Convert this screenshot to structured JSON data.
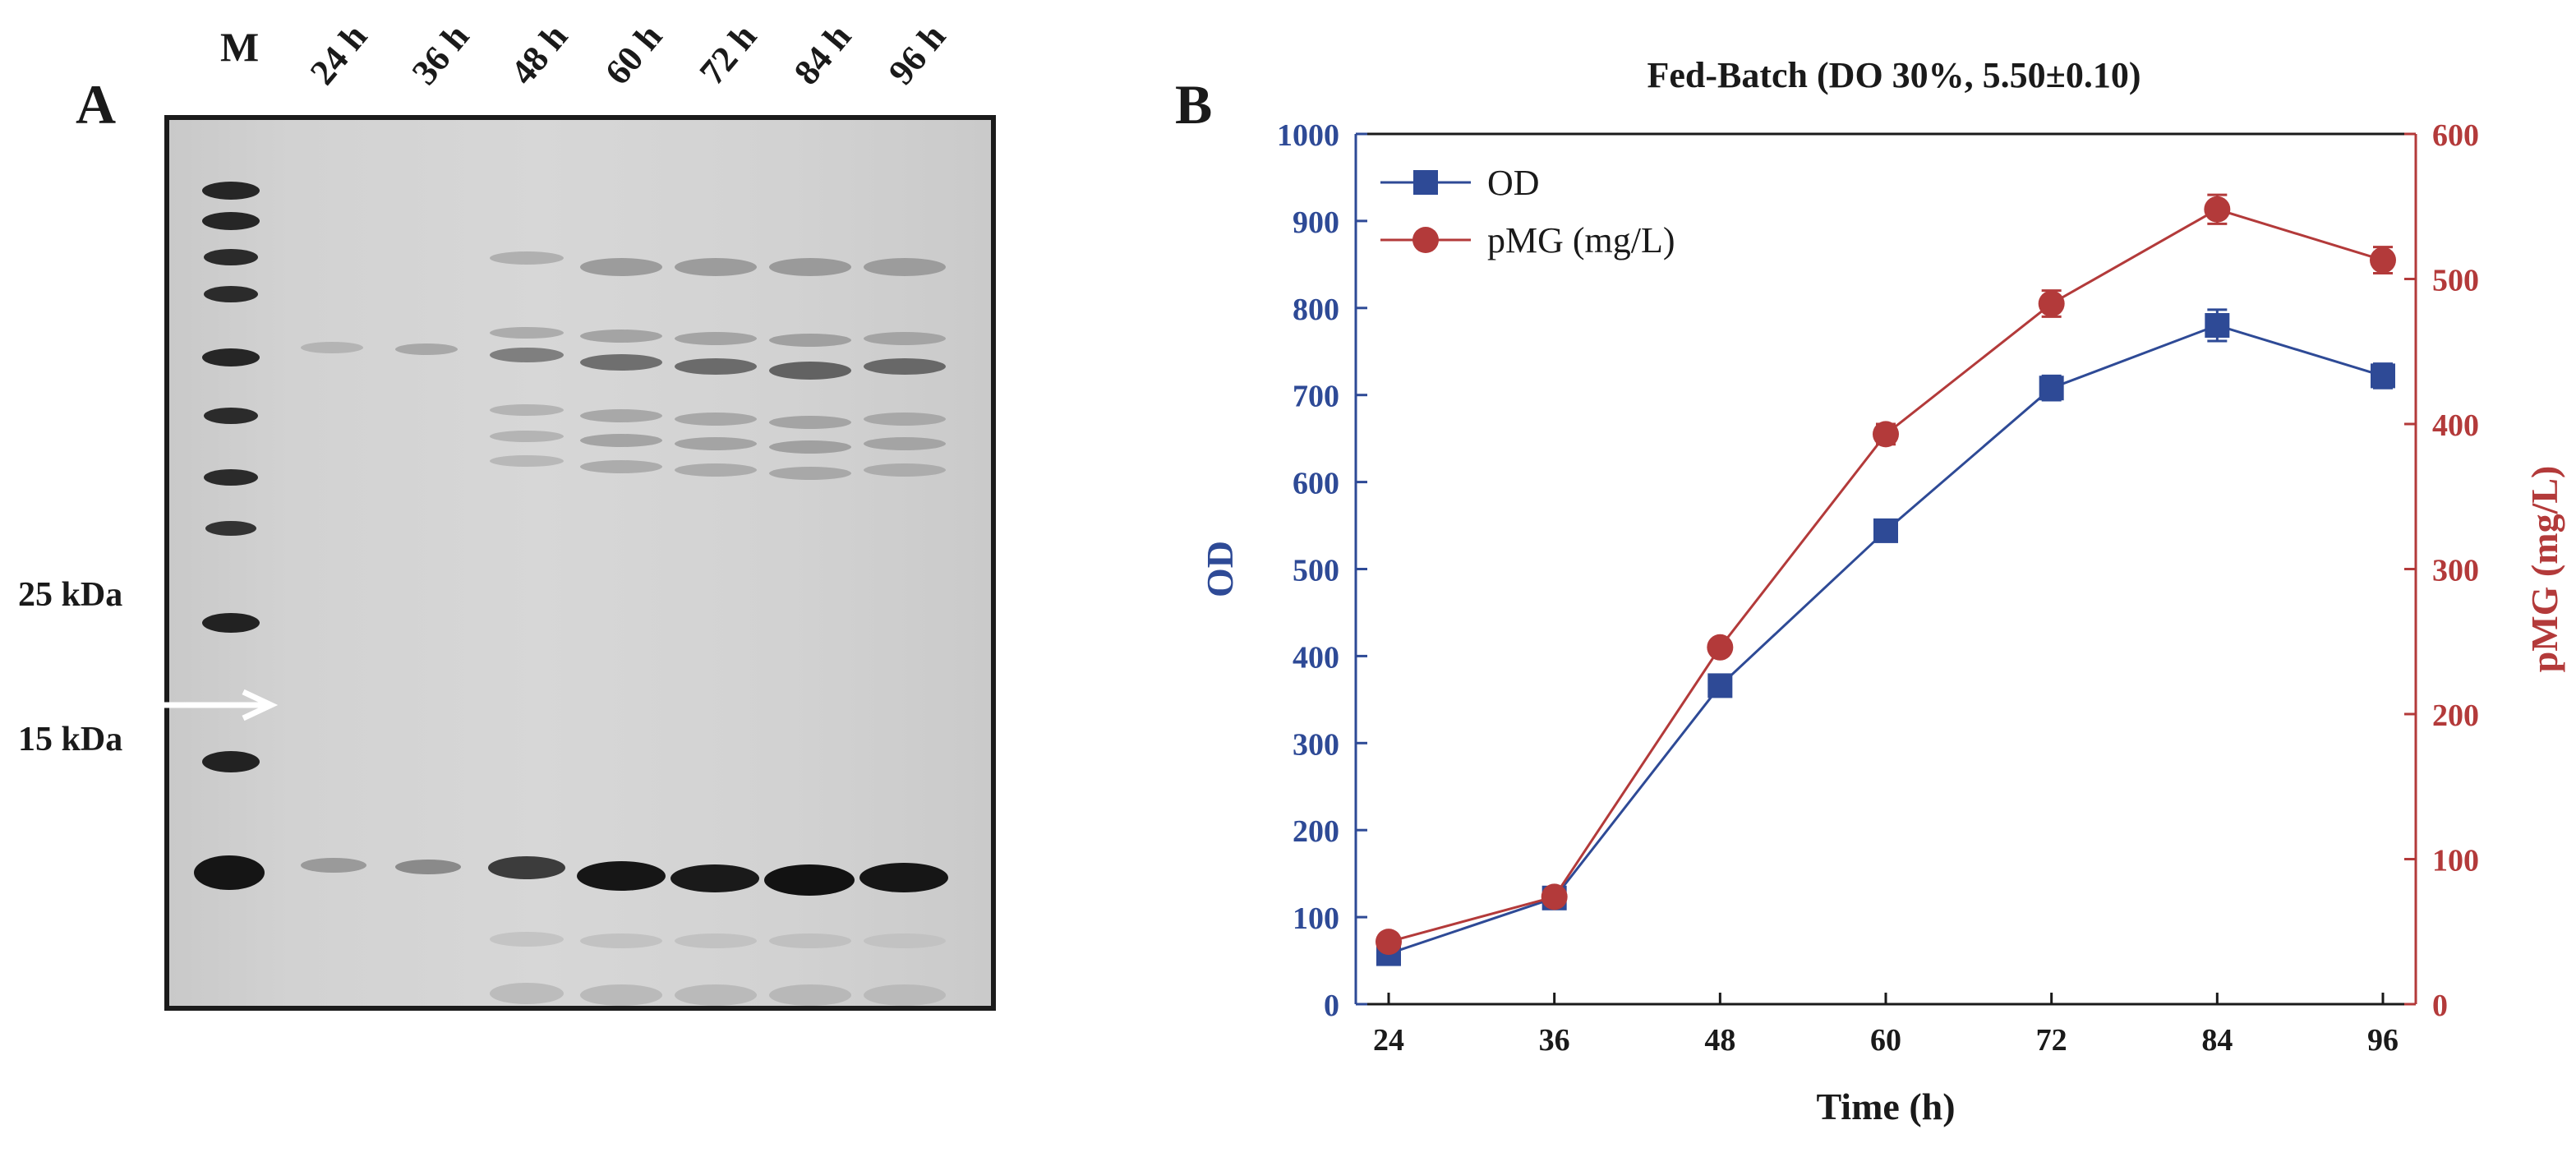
{
  "panels": {
    "a_letter": "A",
    "b_letter": "B"
  },
  "gel": {
    "lanes": [
      "M",
      "24 h",
      "36 h",
      "48 h",
      "60 h",
      "72 h",
      "84 h",
      "96 h"
    ],
    "markers": [
      "25 kDa",
      "15 kDa"
    ]
  },
  "colors": {
    "od": "#2e4a96",
    "pmg": "#b33a3a",
    "axis": "#1a1a1a",
    "gel_frame": "#1b1b1b"
  },
  "chart_data": {
    "type": "line",
    "title": "Fed-Batch (DO 30%, 5.50±0.10)",
    "xlabel": "Time (h)",
    "ylabel_left": "OD",
    "ylabel_right": "pMG (mg/L)",
    "x": [
      24,
      36,
      48,
      60,
      72,
      84,
      96
    ],
    "xlim": [
      24,
      96
    ],
    "ylim_left": [
      0,
      1000
    ],
    "ylim_right": [
      0,
      600
    ],
    "yticks_left": [
      0,
      100,
      200,
      300,
      400,
      500,
      600,
      700,
      800,
      900,
      1000
    ],
    "yticks_right": [
      0,
      100,
      200,
      300,
      400,
      500,
      600
    ],
    "legend_position": "top-left",
    "series": [
      {
        "name": "OD",
        "axis": "left",
        "marker": "square",
        "color": "#2e4a96",
        "values": [
          58,
          122,
          366,
          544,
          708,
          780,
          722
        ],
        "errors": [
          5,
          6,
          8,
          8,
          14,
          18,
          14
        ]
      },
      {
        "name": "pMG (mg/L)",
        "axis": "right",
        "marker": "circle",
        "color": "#b33a3a",
        "values": [
          43,
          74,
          246,
          393,
          483,
          548,
          513
        ],
        "errors": [
          3,
          4,
          5,
          7,
          9,
          10,
          9
        ]
      }
    ]
  }
}
